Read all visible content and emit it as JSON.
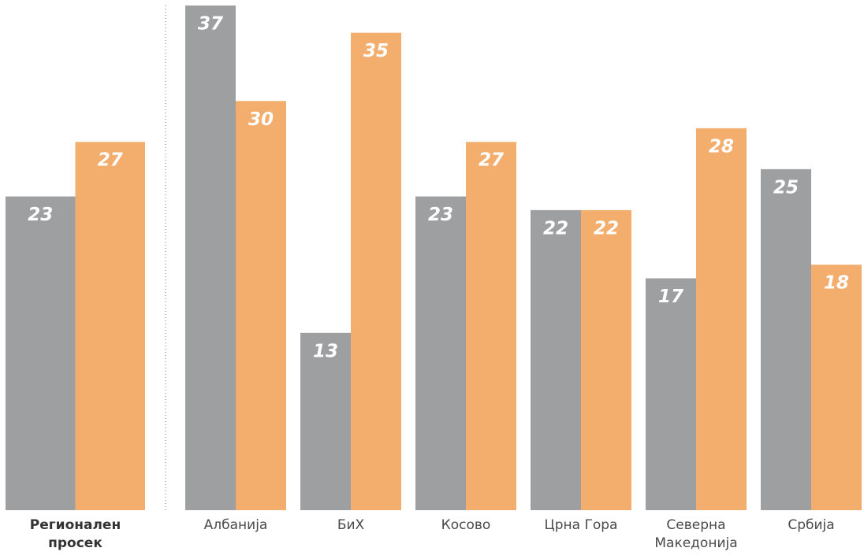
{
  "chart_data": {
    "type": "bar",
    "categories": [
      "Регионален просек",
      "Албанија",
      "БиХ",
      "Косово",
      "Црна Гора",
      "Северна Македонија",
      "Србија"
    ],
    "series": [
      {
        "color": "#9d9fa0",
        "values": [
          23,
          37,
          13,
          23,
          22,
          17,
          25
        ]
      },
      {
        "color": "#f3ae6e",
        "values": [
          27,
          30,
          35,
          27,
          22,
          28,
          18
        ]
      }
    ]
  }
}
